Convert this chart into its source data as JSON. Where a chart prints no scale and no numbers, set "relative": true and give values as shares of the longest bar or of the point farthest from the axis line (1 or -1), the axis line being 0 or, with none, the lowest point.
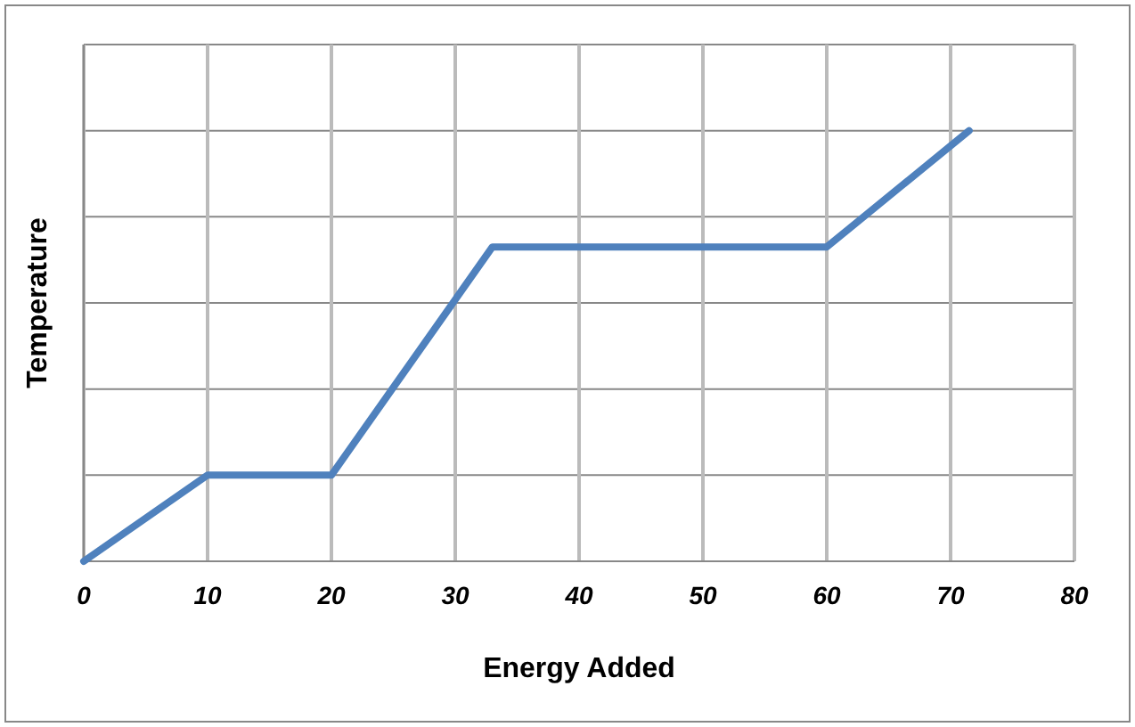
{
  "chart_data": {
    "type": "line",
    "xlabel": "Energy Added",
    "ylabel": "Temperature",
    "relative": true,
    "x": [
      0,
      10,
      20,
      33,
      60,
      71.5
    ],
    "series": [
      {
        "color": "#4f81bd",
        "values": [
          0,
          0.2,
          0.2,
          0.73,
          0.73,
          1
        ]
      }
    ],
    "xlim": [
      0,
      80
    ],
    "xticks": [
      0,
      10,
      20,
      30,
      40,
      50,
      60,
      70,
      80
    ],
    "grid": true,
    "marker": "none",
    "line_style": "solid"
  }
}
